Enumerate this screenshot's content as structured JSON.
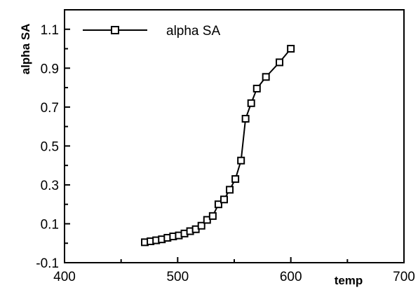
{
  "chart_data": {
    "type": "line",
    "xlabel": "temp",
    "ylabel": "alpha SA",
    "xlim": [
      400,
      700
    ],
    "ylim": [
      -0.1,
      1.2
    ],
    "x_ticks": [
      400,
      500,
      600,
      700
    ],
    "x_tick_labels": [
      "400",
      "500",
      "600",
      "700"
    ],
    "y_ticks": [
      -0.1,
      0.1,
      0.3,
      0.5,
      0.7,
      0.9,
      1.1
    ],
    "y_tick_labels": [
      "-0.1",
      "0.1",
      "0.3",
      "0.5",
      "0.7",
      "0.9",
      "1.1"
    ],
    "grid": false,
    "legend_position": "top-left",
    "marker": "open-square",
    "series": [
      {
        "name": "alpha SA",
        "x": [
          471,
          476,
          481,
          486,
          491,
          496,
          501,
          506,
          511,
          516,
          521,
          526,
          531,
          536,
          541,
          546,
          551,
          556,
          560,
          565,
          570,
          578,
          590,
          600
        ],
        "y": [
          0.005,
          0.01,
          0.015,
          0.02,
          0.028,
          0.035,
          0.04,
          0.05,
          0.062,
          0.072,
          0.09,
          0.12,
          0.14,
          0.2,
          0.225,
          0.275,
          0.33,
          0.425,
          0.64,
          0.72,
          0.795,
          0.855,
          0.93,
          1.0
        ]
      }
    ]
  }
}
